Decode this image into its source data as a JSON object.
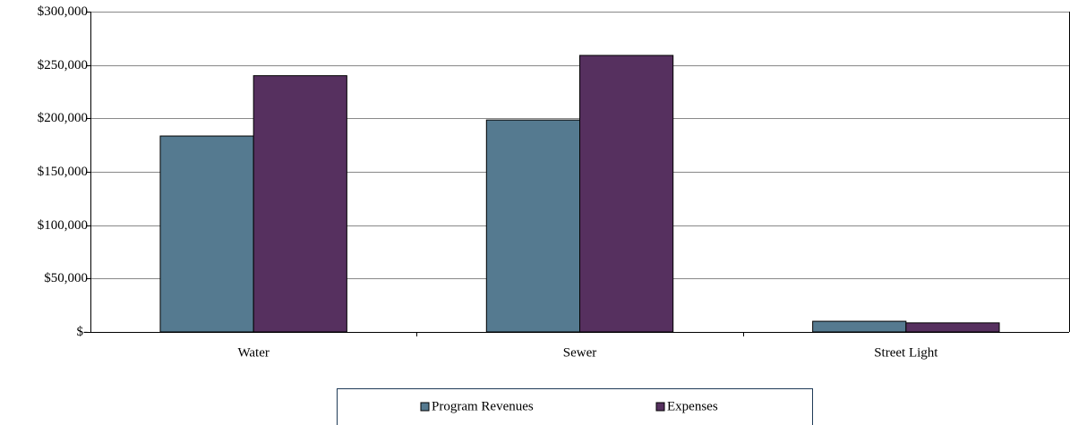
{
  "chart_data": {
    "type": "bar",
    "categories": [
      "Water",
      "Sewer",
      "Street Light"
    ],
    "series": [
      {
        "name": "Program Revenues",
        "color": "#557a90",
        "values": [
          183500,
          198500,
          10000
        ]
      },
      {
        "name": "Expenses",
        "color": "#56305f",
        "values": [
          240000,
          259000,
          8500
        ]
      }
    ],
    "ylim": [
      0,
      300000
    ],
    "yticks": [
      {
        "value": 0,
        "label": "$-"
      },
      {
        "value": 50000,
        "label": "$50,000"
      },
      {
        "value": 100000,
        "label": "$100,000"
      },
      {
        "value": 150000,
        "label": "$150,000"
      },
      {
        "value": 200000,
        "label": "$200,000"
      },
      {
        "value": 250000,
        "label": "$250,000"
      },
      {
        "value": 300000,
        "label": "$300,000"
      }
    ],
    "grid": true
  }
}
